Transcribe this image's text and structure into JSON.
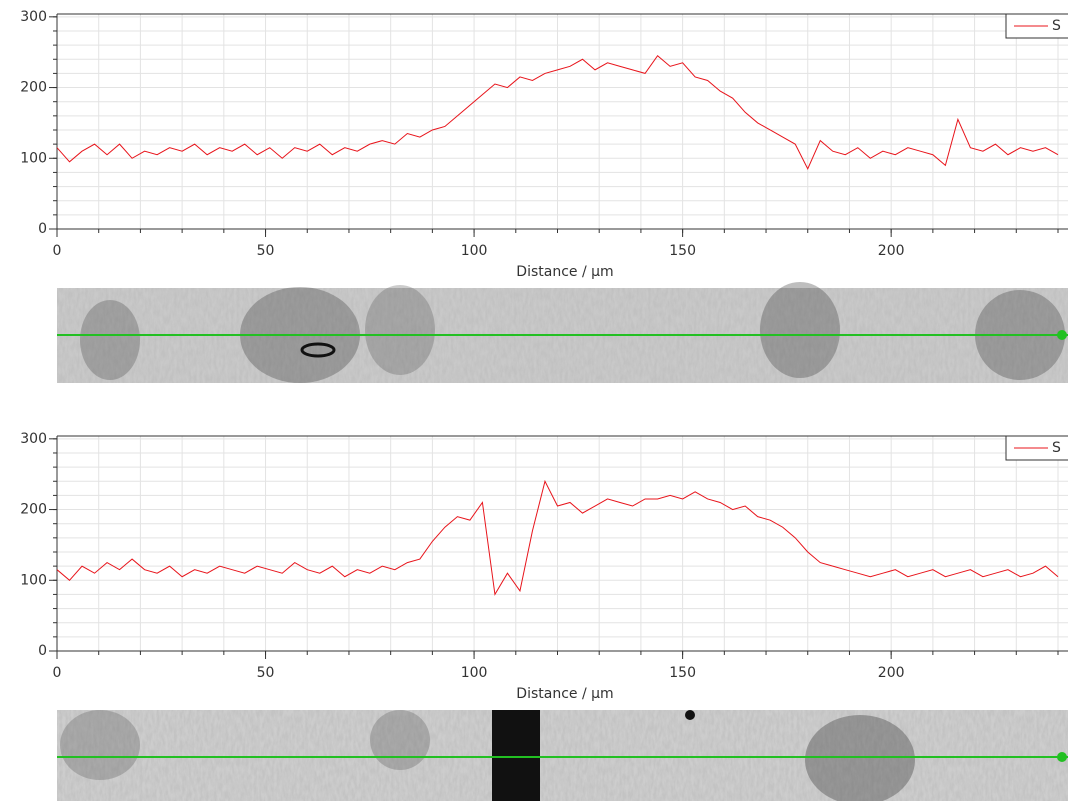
{
  "chart_data": [
    {
      "type": "line",
      "xlabel": "Distance / µm",
      "xlim": [
        0,
        242.4
      ],
      "ylim": [
        0,
        304
      ],
      "xticks": [
        0,
        50,
        100,
        150,
        200
      ],
      "yticks": [
        0,
        100,
        200,
        300
      ],
      "xticks_minor": [
        0,
        10,
        20,
        30,
        40,
        50,
        60,
        70,
        80,
        90,
        100,
        110,
        120,
        130,
        140,
        150,
        160,
        170,
        180,
        190,
        200,
        210,
        220,
        230,
        240
      ],
      "yticks_minor": [
        0,
        20,
        40,
        60,
        80,
        100,
        120,
        140,
        160,
        180,
        200,
        220,
        240,
        260,
        280,
        300
      ],
      "grid": true,
      "legend": "upper right",
      "x": [
        0,
        3,
        6,
        9,
        12,
        15,
        18,
        21,
        24,
        27,
        30,
        33,
        36,
        39,
        42,
        45,
        48,
        51,
        54,
        57,
        60,
        63,
        66,
        69,
        72,
        75,
        78,
        81,
        84,
        87,
        90,
        93,
        96,
        99,
        102,
        105,
        108,
        111,
        114,
        117,
        120,
        123,
        126,
        129,
        132,
        135,
        138,
        141,
        144,
        147,
        150,
        153,
        156,
        159,
        162,
        165,
        168,
        171,
        174,
        177,
        180,
        183,
        186,
        189,
        192,
        195,
        198,
        201,
        204,
        207,
        210,
        213,
        216,
        219,
        222,
        225,
        228,
        231,
        234,
        237,
        240
      ],
      "series": [
        {
          "name": "S",
          "color": "#e8141b",
          "values": [
            115,
            95,
            110,
            120,
            105,
            120,
            100,
            110,
            105,
            115,
            110,
            120,
            105,
            115,
            110,
            120,
            105,
            115,
            100,
            115,
            110,
            120,
            105,
            115,
            110,
            120,
            125,
            120,
            135,
            130,
            140,
            145,
            160,
            175,
            190,
            205,
            200,
            215,
            210,
            220,
            225,
            230,
            240,
            225,
            235,
            230,
            225,
            220,
            245,
            230,
            235,
            215,
            210,
            195,
            185,
            165,
            150,
            140,
            130,
            120,
            85,
            125,
            110,
            105,
            115,
            100,
            110,
            105,
            115,
            110,
            105,
            90,
            155,
            115,
            110,
            120,
            105,
            115,
            110,
            115,
            105
          ]
        }
      ]
    },
    {
      "type": "line",
      "xlabel": "Distance / µm",
      "xlim": [
        0,
        242.4
      ],
      "ylim": [
        0,
        304
      ],
      "xticks": [
        0,
        50,
        100,
        150,
        200
      ],
      "yticks": [
        0,
        100,
        200,
        300
      ],
      "xticks_minor": [
        0,
        10,
        20,
        30,
        40,
        50,
        60,
        70,
        80,
        90,
        100,
        110,
        120,
        130,
        140,
        150,
        160,
        170,
        180,
        190,
        200,
        210,
        220,
        230,
        240
      ],
      "yticks_minor": [
        0,
        20,
        40,
        60,
        80,
        100,
        120,
        140,
        160,
        180,
        200,
        220,
        240,
        260,
        280,
        300
      ],
      "grid": true,
      "legend": "upper right",
      "x": [
        0,
        3,
        6,
        9,
        12,
        15,
        18,
        21,
        24,
        27,
        30,
        33,
        36,
        39,
        42,
        45,
        48,
        51,
        54,
        57,
        60,
        63,
        66,
        69,
        72,
        75,
        78,
        81,
        84,
        87,
        90,
        93,
        96,
        99,
        102,
        105,
        108,
        111,
        114,
        117,
        120,
        123,
        126,
        129,
        132,
        135,
        138,
        141,
        144,
        147,
        150,
        153,
        156,
        159,
        162,
        165,
        168,
        171,
        174,
        177,
        180,
        183,
        186,
        189,
        192,
        195,
        198,
        201,
        204,
        207,
        210,
        213,
        216,
        219,
        222,
        225,
        228,
        231,
        234,
        237,
        240
      ],
      "series": [
        {
          "name": "S",
          "color": "#e8141b",
          "values": [
            115,
            100,
            120,
            110,
            125,
            115,
            130,
            115,
            110,
            120,
            105,
            115,
            110,
            120,
            115,
            110,
            120,
            115,
            110,
            125,
            115,
            110,
            120,
            105,
            115,
            110,
            120,
            115,
            125,
            130,
            155,
            175,
            190,
            185,
            210,
            80,
            110,
            85,
            170,
            240,
            205,
            210,
            195,
            205,
            215,
            210,
            205,
            215,
            215,
            220,
            215,
            225,
            215,
            210,
            200,
            205,
            190,
            185,
            175,
            160,
            140,
            125,
            120,
            115,
            110,
            105,
            110,
            115,
            105,
            110,
            115,
            105,
            110,
            115,
            105,
            110,
            115,
            105,
            110,
            120,
            105
          ]
        }
      ]
    }
  ]
}
